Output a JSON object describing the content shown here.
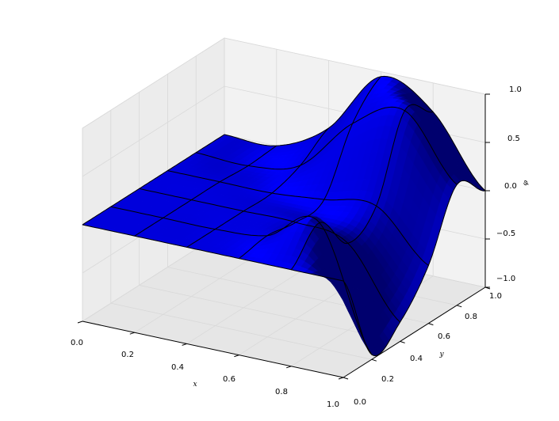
{
  "chart_data": {
    "type": "surface3d",
    "title": "",
    "xlabel": "x",
    "ylabel": "y",
    "zlabel": "φ",
    "xlim": [
      0.0,
      1.0
    ],
    "ylim": [
      0.0,
      1.0
    ],
    "zlim": [
      -1.0,
      1.0
    ],
    "x_ticks": [
      "0.0",
      "0.2",
      "0.4",
      "0.6",
      "0.8",
      "1.0"
    ],
    "y_ticks": [
      "0.0",
      "0.2",
      "0.4",
      "0.6",
      "0.8",
      "1.0"
    ],
    "z_ticks": [
      "−1.0",
      "−0.5",
      "0.0",
      "0.5",
      "1.0"
    ],
    "grid": true,
    "surface_color": "#0000ff",
    "edge_color": "#000000",
    "pane_color": "#f2f2f2",
    "series": [
      {
        "y": 0.0,
        "x": [
          0.0,
          0.2,
          0.4,
          0.6,
          0.8,
          1.0
        ],
        "z": [
          0.0,
          0.0,
          0.0,
          0.0,
          0.0,
          0.0
        ]
      },
      {
        "y": 0.2,
        "x": [
          0.0,
          0.2,
          0.4,
          0.6,
          0.8,
          1.0
        ],
        "z": [
          0.0,
          0.0,
          0.0,
          0.05,
          0.3,
          -0.95
        ]
      },
      {
        "y": 0.4,
        "x": [
          0.0,
          0.2,
          0.4,
          0.6,
          0.8,
          1.0
        ],
        "z": [
          0.0,
          0.0,
          0.0,
          0.0,
          -0.1,
          -0.8
        ]
      },
      {
        "y": 0.6,
        "x": [
          0.0,
          0.2,
          0.4,
          0.6,
          0.8,
          1.0
        ],
        "z": [
          0.0,
          0.0,
          0.0,
          0.05,
          0.1,
          -0.4
        ]
      },
      {
        "y": 0.8,
        "x": [
          0.0,
          0.2,
          0.4,
          0.6,
          0.8,
          1.0
        ],
        "z": [
          0.0,
          -0.02,
          0.1,
          0.65,
          0.9,
          0.25
        ]
      },
      {
        "y": 1.0,
        "x": [
          0.0,
          0.2,
          0.4,
          0.6,
          0.8,
          1.0
        ],
        "z": [
          0.0,
          0.0,
          0.3,
          0.95,
          0.7,
          0.0
        ]
      }
    ]
  }
}
